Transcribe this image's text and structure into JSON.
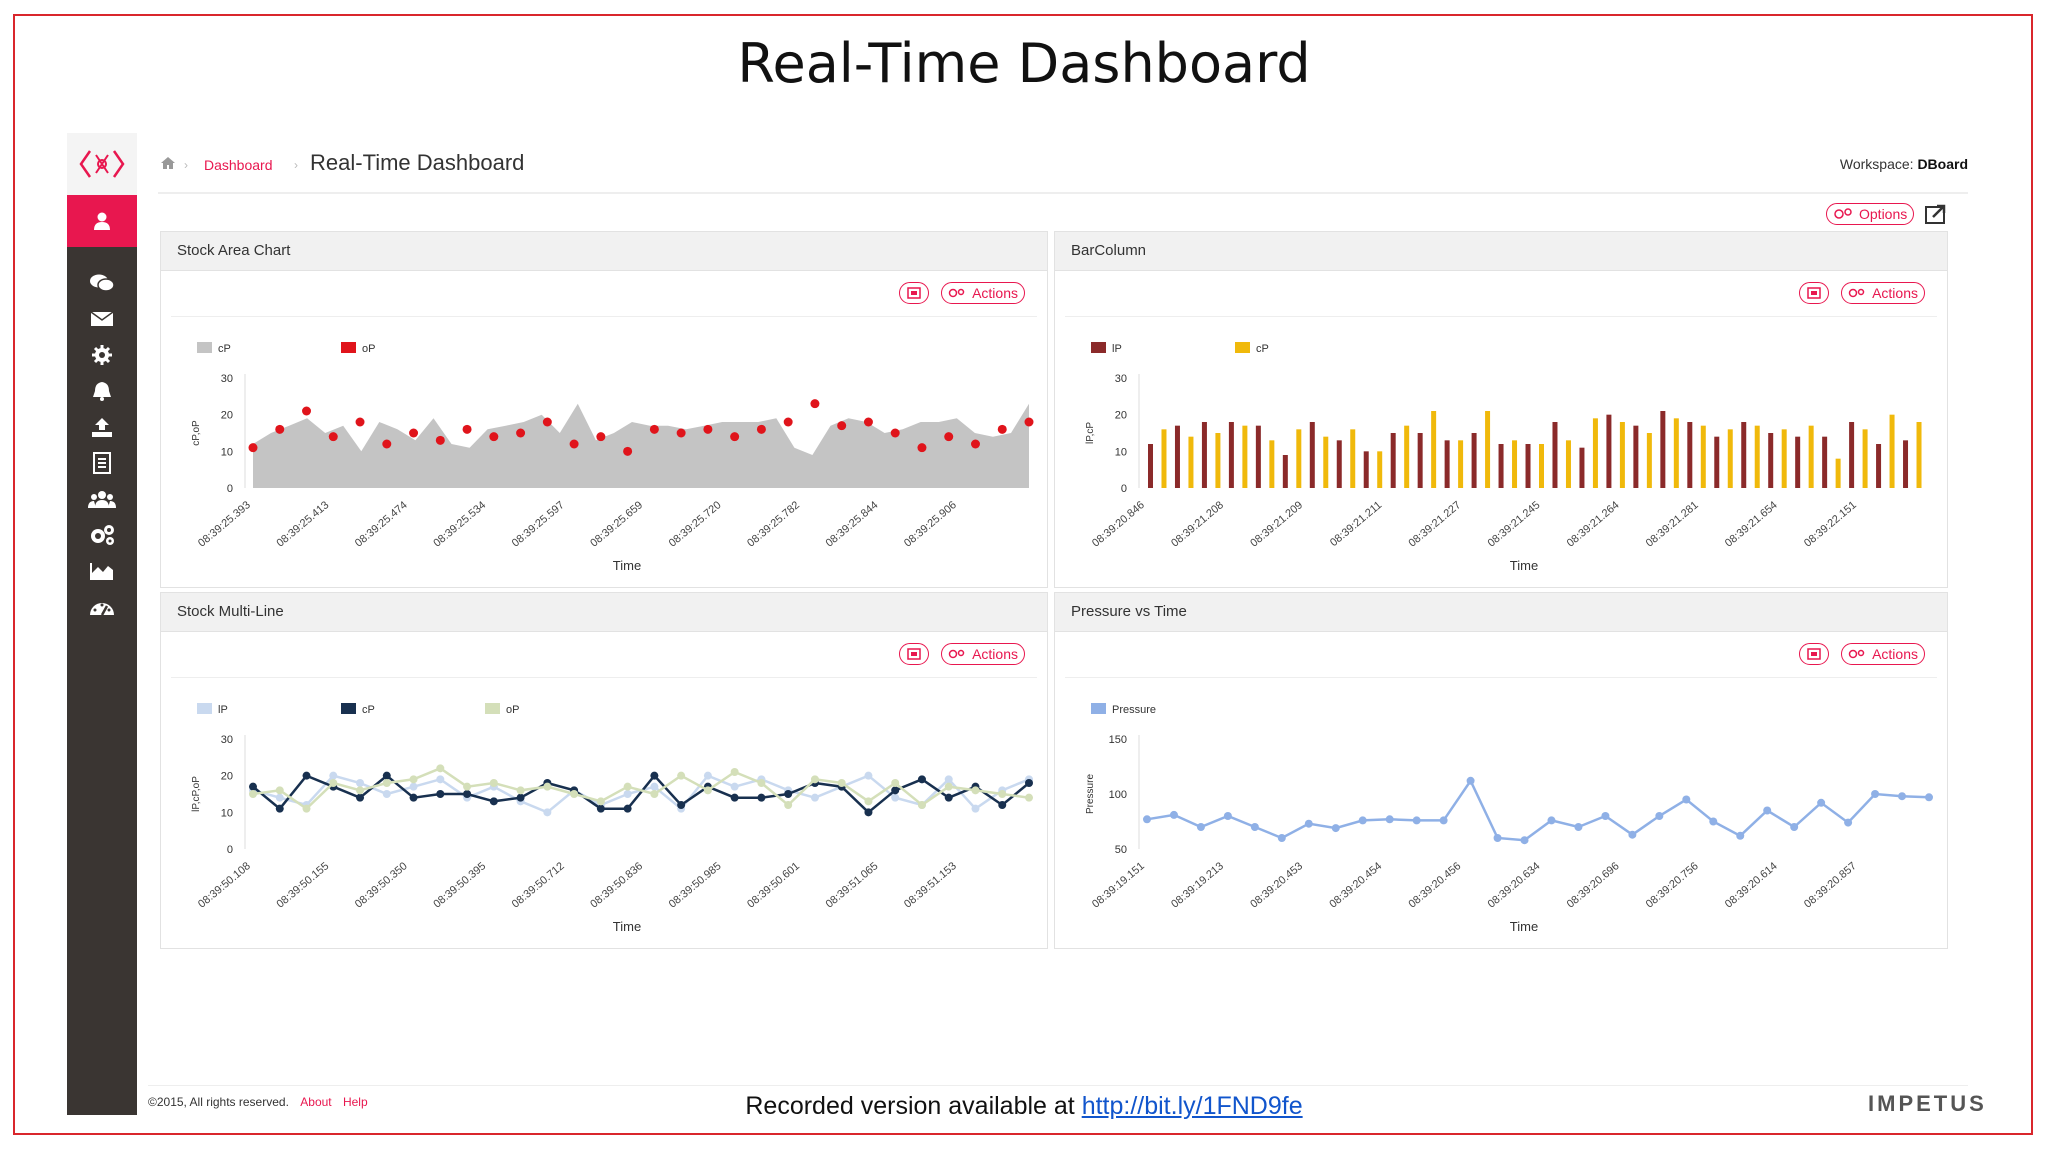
{
  "slide": {
    "title": "Real-Time Dashboard",
    "recorded_text": "Recorded version available at",
    "recorded_link": "http://bit.ly/1FND9fe",
    "brand": "IMPETUS"
  },
  "sidebar": {
    "items": [
      {
        "icon": "user-icon",
        "active": true
      },
      {
        "icon": "chat-icon"
      },
      {
        "icon": "mail-icon"
      },
      {
        "icon": "gear-icon"
      },
      {
        "icon": "bell-icon"
      },
      {
        "icon": "upload-icon"
      },
      {
        "icon": "document-icon"
      },
      {
        "icon": "users-icon"
      },
      {
        "icon": "gears-icon"
      },
      {
        "icon": "area-chart-icon"
      },
      {
        "icon": "dashboard-icon"
      }
    ]
  },
  "header": {
    "breadcrumb_link": "Dashboard",
    "title": "Real-Time Dashboard",
    "workspace_label": "Workspace:",
    "workspace_name": "DBoard",
    "options_label": "Options"
  },
  "footer": {
    "copyright": "©2015, All rights reserved.",
    "about": "About",
    "help": "Help"
  },
  "colors": {
    "accent": "#e8174f",
    "sidebar": "#3a3532"
  },
  "panels": [
    {
      "title": "Stock Area Chart",
      "actions_label": "Actions"
    },
    {
      "title": "BarColumn",
      "actions_label": "Actions"
    },
    {
      "title": "Stock Multi-Line",
      "actions_label": "Actions"
    },
    {
      "title": "Pressure vs Time",
      "actions_label": "Actions"
    }
  ],
  "chart_data": [
    {
      "type": "area",
      "title": "Stock Area Chart",
      "xlabel": "Time",
      "ylabel": "cP,oP",
      "ylim": [
        0,
        30
      ],
      "yticks": [
        0,
        10,
        20,
        30
      ],
      "xticklabels": [
        "08:39:25.393",
        "08:39:25.413",
        "08:39:25.474",
        "08:39:25.534",
        "08:39:25.597",
        "08:39:25.659",
        "08:39:25.720",
        "08:39:25.782",
        "08:39:25.844",
        "08:39:25.906"
      ],
      "series": [
        {
          "name": "cP",
          "color": "#c4c4c4",
          "kind": "area",
          "values": [
            12,
            15,
            17,
            19,
            15,
            17,
            10,
            18,
            16,
            13,
            19,
            12,
            11,
            16,
            17,
            18,
            20,
            15,
            23,
            13,
            15,
            18,
            17,
            17,
            16,
            17,
            18,
            18,
            18,
            19,
            11,
            9,
            17,
            19,
            18,
            15,
            16,
            18,
            18,
            19,
            15,
            14,
            15,
            23
          ]
        },
        {
          "name": "oP",
          "color": "#e0141b",
          "kind": "marker",
          "values": [
            11,
            16,
            21,
            14,
            18,
            12,
            15,
            13,
            16,
            14,
            15,
            18,
            12,
            14,
            10,
            16,
            15,
            16,
            14,
            16,
            18,
            23,
            17,
            18,
            15,
            11,
            14,
            12,
            16,
            18
          ]
        }
      ]
    },
    {
      "type": "bar",
      "title": "BarColumn",
      "xlabel": "Time",
      "ylabel": "lP,cP",
      "ylim": [
        0,
        30
      ],
      "yticks": [
        0,
        10,
        20,
        30
      ],
      "xticklabels": [
        "08:39:20.846",
        "08:39:21.208",
        "08:39:21.209",
        "08:39:21.211",
        "08:39:21.227",
        "08:39:21.245",
        "08:39:21.264",
        "08:39:21.281",
        "08:39:21.654",
        "08:39:22.151"
      ],
      "series": [
        {
          "name": "lP",
          "color": "#8b2a2a",
          "values": [
            12,
            17,
            18,
            18,
            17,
            9,
            18,
            13,
            10,
            15,
            15,
            13,
            15,
            12,
            12,
            18,
            11,
            20,
            17,
            21,
            18,
            14,
            18,
            15,
            14,
            14,
            18,
            12,
            13
          ]
        },
        {
          "name": "cP",
          "color": "#f0b90b",
          "values": [
            16,
            14,
            15,
            17,
            13,
            16,
            14,
            16,
            10,
            17,
            21,
            13,
            21,
            13,
            12,
            13,
            19,
            18,
            15,
            19,
            17,
            16,
            17,
            16,
            17,
            8,
            16,
            20,
            18
          ]
        }
      ]
    },
    {
      "type": "line",
      "title": "Stock Multi-Line",
      "xlabel": "Time",
      "ylabel": "lP,cP,oP",
      "ylim": [
        0,
        30
      ],
      "yticks": [
        0,
        10,
        20,
        30
      ],
      "xticklabels": [
        "08:39:50.108",
        "08:39:50.155",
        "08:39:50.350",
        "08:39:50.395",
        "08:39:50.712",
        "08:39:50.836",
        "08:39:50.985",
        "08:39:50.601",
        "08:39:51.065",
        "08:39:51.153"
      ],
      "series": [
        {
          "name": "lP",
          "color": "#c9d9ef",
          "values": [
            16,
            14,
            12,
            20,
            18,
            15,
            17,
            19,
            14,
            17,
            13,
            10,
            16,
            12,
            15,
            17,
            11,
            20,
            17,
            19,
            16,
            14,
            17,
            20,
            14,
            12,
            19,
            11,
            16,
            19
          ]
        },
        {
          "name": "cP",
          "color": "#18304f",
          "values": [
            17,
            11,
            20,
            17,
            14,
            20,
            14,
            15,
            15,
            13,
            14,
            18,
            16,
            11,
            11,
            20,
            12,
            17,
            14,
            14,
            15,
            18,
            17,
            10,
            16,
            19,
            14,
            17,
            12,
            18
          ]
        },
        {
          "name": "oP",
          "color": "#d4dfb9",
          "values": [
            15,
            16,
            11,
            18,
            16,
            18,
            19,
            22,
            17,
            18,
            16,
            17,
            15,
            13,
            17,
            15,
            20,
            16,
            21,
            18,
            12,
            19,
            18,
            13,
            18,
            12,
            17,
            16,
            15,
            14
          ]
        }
      ]
    },
    {
      "type": "line",
      "title": "Pressure vs Time",
      "xlabel": "Time",
      "ylabel": "Pressure",
      "ylim": [
        50,
        150
      ],
      "yticks": [
        50,
        100,
        150
      ],
      "xticklabels": [
        "08:39:19.151",
        "08:39:19.213",
        "08:39:20.453",
        "08:39:20.454",
        "08:39:20.456",
        "08:39:20.634",
        "08:39:20.696",
        "08:39:20.756",
        "08:39:20.614",
        "08:39:20.857"
      ],
      "series": [
        {
          "name": "Pressure",
          "color": "#8fb0e6",
          "values": [
            77,
            81,
            70,
            80,
            70,
            60,
            73,
            69,
            76,
            77,
            76,
            76,
            112,
            60,
            58,
            76,
            70,
            80,
            63,
            80,
            95,
            75,
            62,
            85,
            70,
            92,
            74,
            100,
            98,
            97
          ]
        }
      ]
    }
  ]
}
